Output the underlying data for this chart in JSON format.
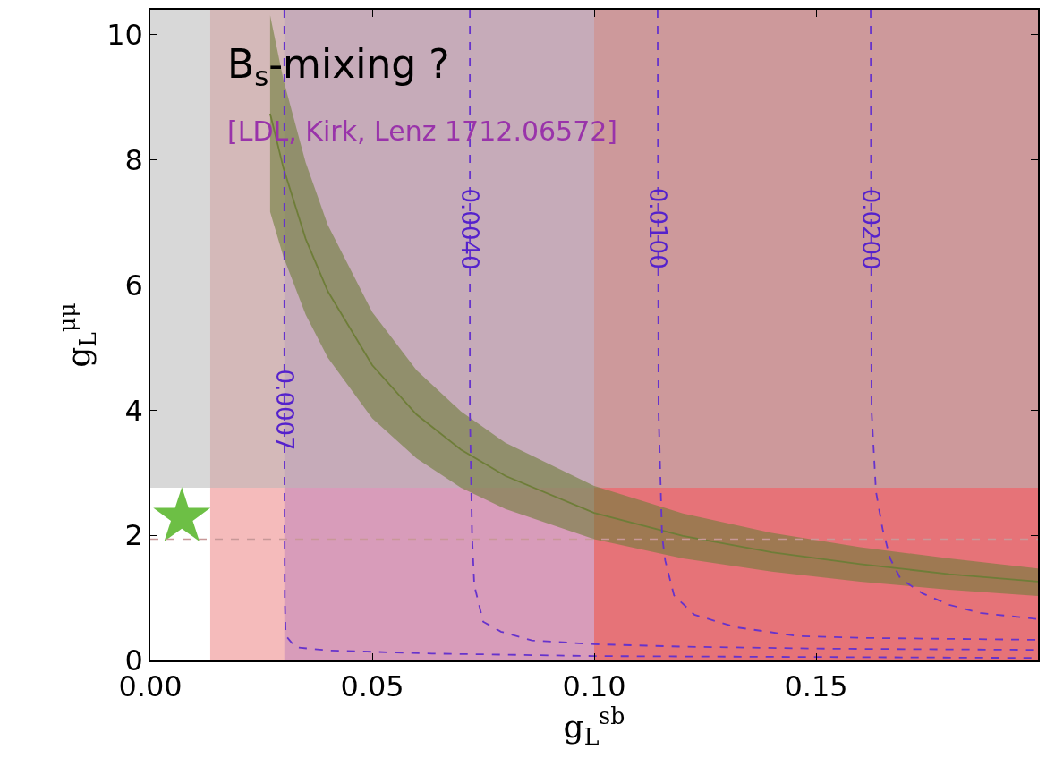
{
  "chart_data": {
    "type": "line",
    "xlabel": "g$_{L}$$^{sb}$",
    "ylabel": "g$_{L}$$^{μμ}$",
    "xlim": [
      0,
      0.2
    ],
    "ylim": [
      0,
      10.4
    ],
    "xticks": [
      {
        "value": 0,
        "label": "0.00"
      },
      0.05,
      {
        "value": 0.1,
        "label": "0.10"
      },
      0.15
    ],
    "yticks": [
      0,
      2,
      4,
      6,
      8,
      10
    ],
    "grid": false,
    "bands": [
      {
        "axis": "x",
        "from": 0.0135,
        "to": 0.1,
        "color": "#ed8383"
      },
      {
        "axis": "x",
        "from": 0.1,
        "to": 0.2,
        "color": "#d2000a"
      },
      {
        "axis": "x",
        "from": 0.0302,
        "to": 0.1,
        "color": "#c083b9"
      },
      {
        "axis": "y",
        "from": 2.76,
        "to": 10.4,
        "color": "#b8b8b8"
      }
    ],
    "ref_lines": [
      {
        "axis": "y",
        "value": 1.94,
        "color": "#c89898",
        "line_style": "dashed"
      }
    ],
    "series": [
      {
        "color": "#6e7d38",
        "line_style": "solid",
        "marker": "none",
        "x": [
          0.027,
          0.03,
          0.035,
          0.04,
          0.05,
          0.06,
          0.07,
          0.08,
          0.1,
          0.12,
          0.14,
          0.16,
          0.18,
          0.2
        ],
        "values": [
          8.74,
          7.87,
          6.74,
          5.9,
          4.72,
          3.93,
          3.37,
          2.95,
          2.36,
          1.99,
          1.73,
          1.54,
          1.38,
          1.26
        ],
        "lower": [
          7.17,
          6.45,
          5.53,
          4.84,
          3.87,
          3.23,
          2.76,
          2.42,
          1.94,
          1.63,
          1.42,
          1.26,
          1.13,
          1.03
        ],
        "upper": [
          10.31,
          9.28,
          7.96,
          6.96,
          5.57,
          4.64,
          3.98,
          3.48,
          2.79,
          2.35,
          2.04,
          1.81,
          1.63,
          1.47
        ]
      },
      {
        "type": "line",
        "color": "#6633cc",
        "line_style": "dashed",
        "marker": "none",
        "x": [
          0.0302,
          0.0302,
          0.0303,
          0.0305,
          0.0327,
          0.0403,
          0.0635,
          0.1,
          0.2
        ],
        "values": [
          10.4,
          4,
          1,
          0.4,
          0.21,
          0.16,
          0.11,
          0.07,
          0.04
        ]
      },
      {
        "type": "line",
        "color": "#6633cc",
        "line_style": "dashed",
        "marker": "none",
        "x": [
          0.072,
          0.072,
          0.0725,
          0.073,
          0.075,
          0.079,
          0.086,
          0.1,
          0.12,
          0.15,
          0.2
        ],
        "values": [
          10.4,
          4,
          2,
          1.2,
          0.62,
          0.46,
          0.32,
          0.26,
          0.22,
          0.19,
          0.17
        ]
      },
      {
        "type": "line",
        "color": "#6633cc",
        "line_style": "dashed",
        "marker": "none",
        "x": [
          0.1143,
          0.1145,
          0.1153,
          0.116,
          0.118,
          0.1226,
          0.132,
          0.146,
          0.161,
          0.2
        ],
        "values": [
          10.4,
          4,
          2.0,
          1.6,
          1.04,
          0.73,
          0.53,
          0.39,
          0.36,
          0.33
        ]
      },
      {
        "type": "line",
        "color": "#6633cc",
        "line_style": "dashed",
        "marker": "none",
        "x": [
          0.1623,
          0.1625,
          0.1635,
          0.165,
          0.1667,
          0.169,
          0.174,
          0.18,
          0.187,
          0.2
        ],
        "values": [
          10.4,
          4,
          2.7,
          2.1,
          1.63,
          1.31,
          1.07,
          0.89,
          0.76,
          0.66
        ]
      },
      {
        "type": "scatter",
        "color": "#6dbf45",
        "marker": "star",
        "x": [
          0.0071
        ],
        "values": [
          2.29
        ]
      }
    ],
    "annotations": [
      "B$_{s}$-mixing ?",
      "[LDL, Kirk, Lenz 1712.06572]",
      {
        "text": "0.0007",
        "x": 0.0302,
        "y": 4.0
      },
      {
        "text": "0.0040",
        "x": 0.072,
        "y": 6.9
      },
      {
        "text": "0.0100",
        "x": 0.1143,
        "y": 6.9
      },
      {
        "text": "0.0200",
        "x": 0.1623,
        "y": 6.9
      }
    ]
  }
}
